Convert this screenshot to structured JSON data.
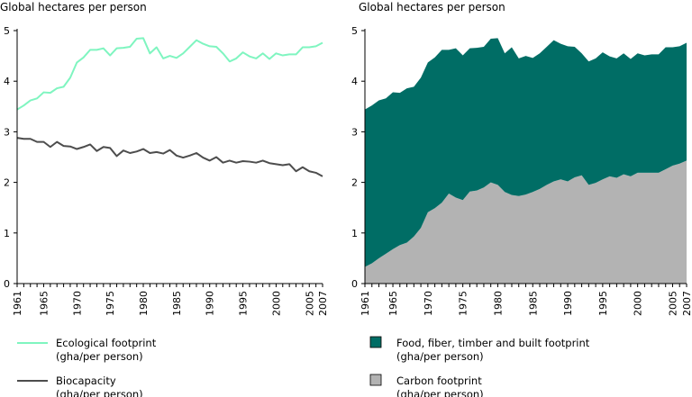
{
  "chart_data": [
    {
      "type": "line",
      "ylabel": "Global hectares per person",
      "ylim": [
        0,
        5
      ],
      "yticks": [
        0,
        1,
        2,
        3,
        4,
        5
      ],
      "xlim": [
        1961,
        2007
      ],
      "xticks": [
        1961,
        1965,
        1970,
        1975,
        1980,
        1985,
        1990,
        1995,
        2000,
        2005,
        2007
      ],
      "grid": false,
      "legend_position": "bottom",
      "x": [
        1961,
        1962,
        1963,
        1964,
        1965,
        1966,
        1967,
        1968,
        1969,
        1970,
        1971,
        1972,
        1973,
        1974,
        1975,
        1976,
        1977,
        1978,
        1979,
        1980,
        1981,
        1982,
        1983,
        1984,
        1985,
        1986,
        1987,
        1988,
        1989,
        1990,
        1991,
        1992,
        1993,
        1994,
        1995,
        1996,
        1997,
        1998,
        1999,
        2000,
        2001,
        2002,
        2003,
        2004,
        2005,
        2006,
        2007
      ],
      "series": [
        {
          "name": "Ecological footprint",
          "name_line2": "(gha/per person)",
          "color": "#7ff5c0",
          "values": [
            3.44,
            3.52,
            3.62,
            3.66,
            3.78,
            3.77,
            3.86,
            3.89,
            4.07,
            4.37,
            4.47,
            4.62,
            4.62,
            4.65,
            4.51,
            4.65,
            4.66,
            4.68,
            4.84,
            4.85,
            4.55,
            4.67,
            4.45,
            4.5,
            4.46,
            4.55,
            4.68,
            4.81,
            4.74,
            4.69,
            4.68,
            4.55,
            4.39,
            4.45,
            4.57,
            4.49,
            4.45,
            4.55,
            4.44,
            4.55,
            4.51,
            4.53,
            4.53,
            4.67,
            4.67,
            4.69,
            4.76
          ]
        },
        {
          "name": "Biocapacity",
          "name_line2": "(gha/per person)",
          "color": "#4d4d4d",
          "values": [
            2.88,
            2.86,
            2.86,
            2.8,
            2.8,
            2.7,
            2.8,
            2.72,
            2.71,
            2.66,
            2.7,
            2.75,
            2.62,
            2.7,
            2.68,
            2.52,
            2.63,
            2.58,
            2.61,
            2.66,
            2.58,
            2.6,
            2.57,
            2.64,
            2.53,
            2.49,
            2.53,
            2.58,
            2.49,
            2.43,
            2.5,
            2.39,
            2.43,
            2.39,
            2.42,
            2.41,
            2.39,
            2.43,
            2.38,
            2.36,
            2.34,
            2.36,
            2.22,
            2.3,
            2.22,
            2.19,
            2.12
          ]
        }
      ]
    },
    {
      "type": "area",
      "stacked": true,
      "ylabel": "Global hectares per person",
      "ylim": [
        0,
        5
      ],
      "yticks": [
        0,
        1,
        2,
        3,
        4,
        5
      ],
      "xlim": [
        1961,
        2007
      ],
      "xticks": [
        1961,
        1965,
        1970,
        1975,
        1980,
        1985,
        1990,
        1995,
        2000,
        2005,
        2007
      ],
      "grid": false,
      "legend_position": "bottom",
      "x": [
        1961,
        1962,
        1963,
        1964,
        1965,
        1966,
        1967,
        1968,
        1969,
        1970,
        1971,
        1972,
        1973,
        1974,
        1975,
        1976,
        1977,
        1978,
        1979,
        1980,
        1981,
        1982,
        1983,
        1984,
        1985,
        1986,
        1987,
        1988,
        1989,
        1990,
        1991,
        1992,
        1993,
        1994,
        1995,
        1996,
        1997,
        1998,
        1999,
        2000,
        2001,
        2002,
        2003,
        2004,
        2005,
        2006,
        2007
      ],
      "series": [
        {
          "name": "Carbon footprint",
          "name_line2": "(gha/per person)",
          "color": "#b3b3b3",
          "values": [
            0.33,
            0.4,
            0.5,
            0.59,
            0.68,
            0.76,
            0.81,
            0.93,
            1.1,
            1.41,
            1.49,
            1.6,
            1.78,
            1.7,
            1.65,
            1.82,
            1.84,
            1.9,
            2.0,
            1.95,
            1.81,
            1.75,
            1.73,
            1.76,
            1.81,
            1.87,
            1.95,
            2.02,
            2.06,
            2.02,
            2.1,
            2.14,
            1.95,
            1.99,
            2.06,
            2.12,
            2.09,
            2.16,
            2.12,
            2.19,
            2.19,
            2.19,
            2.19,
            2.26,
            2.33,
            2.37,
            2.43
          ]
        },
        {
          "name": "Food, fiber, timber and built footprint",
          "name_line2": "(gha/per person)",
          "color": "#006d65",
          "values": [
            3.11,
            3.12,
            3.12,
            3.07,
            3.1,
            3.01,
            3.05,
            2.96,
            2.97,
            2.96,
            2.98,
            3.02,
            2.84,
            2.95,
            2.86,
            2.83,
            2.82,
            2.78,
            2.84,
            2.9,
            2.74,
            2.92,
            2.72,
            2.74,
            2.65,
            2.68,
            2.73,
            2.79,
            2.68,
            2.67,
            2.58,
            2.41,
            2.44,
            2.46,
            2.51,
            2.37,
            2.36,
            2.39,
            2.32,
            2.36,
            2.32,
            2.34,
            2.34,
            2.41,
            2.34,
            2.32,
            2.33
          ]
        }
      ]
    }
  ]
}
